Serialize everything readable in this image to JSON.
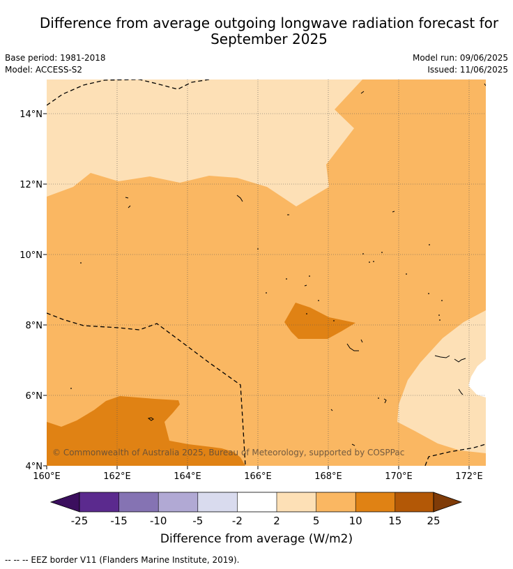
{
  "title_line1": "Difference from average outgoing longwave radiation forecast for",
  "title_line2": "September 2025",
  "base_period": "Base period: 1981-2018",
  "model": "Model: ACCESS-S2",
  "model_run": "Model run: 09/06/2025",
  "issued": "Issued: 11/06/2025",
  "copyright": "© Commonwealth of Australia 2025, Bureau of Meteorology, supported by COSPPac",
  "lat_labels": [
    "4°N",
    "6°N",
    "8°N",
    "10°N",
    "12°N",
    "14°N"
  ],
  "lon_labels": [
    "160°E",
    "162°E",
    "164°E",
    "166°E",
    "168°E",
    "170°E",
    "172°E"
  ],
  "colorbar": {
    "ticks": [
      "-25",
      "-15",
      "-10",
      "-5",
      "-2",
      "2",
      "5",
      "10",
      "15",
      "25"
    ],
    "label": "Difference from average (W/m2)",
    "colors": {
      "below_min": "#3b0f5e",
      "c1": "#5b2a8e",
      "c2": "#8573b3",
      "c3": "#b1a9d4",
      "c4": "#d9dbee",
      "c5": "#ffffff",
      "c6": "#fde0b6",
      "c7": "#fab762",
      "c8": "#e08214",
      "c9": "#b35806",
      "above_max": "#7f3b08"
    }
  },
  "legend_footer": "--  --  -- EEZ border V11 (Flanders Marine Institute, 2019).",
  "map_colors": {
    "light": "#fde0b6",
    "mid": "#fab762",
    "dark": "#e08214",
    "white": "#ffffff"
  }
}
